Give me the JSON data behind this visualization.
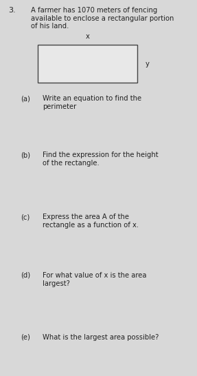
{
  "background_color": "#d8d8d8",
  "question_number": "3.",
  "intro_text": "A farmer has 1070 meters of fencing\navailable to enclose a rectangular portion\nof his land.",
  "rect_label_x": "x",
  "rect_label_y": "y",
  "parts": [
    {
      "label": "(a)",
      "text": "Write an equation to find the\nperimeter"
    },
    {
      "label": "(b)",
      "text": "Find the expression for the height\nof the rectangle."
    },
    {
      "label": "(c)",
      "text": "Express the area A of the\nrectangle as a function of x."
    },
    {
      "label": "(d)",
      "text": "For what value of x is the area\nlargest?"
    },
    {
      "label": "(e)",
      "text": "What is the largest area possible?"
    }
  ],
  "font_size_intro": 7.2,
  "font_size_parts": 7.2,
  "font_size_label": 7.2,
  "font_size_number": 8.0,
  "text_color": "#222222"
}
